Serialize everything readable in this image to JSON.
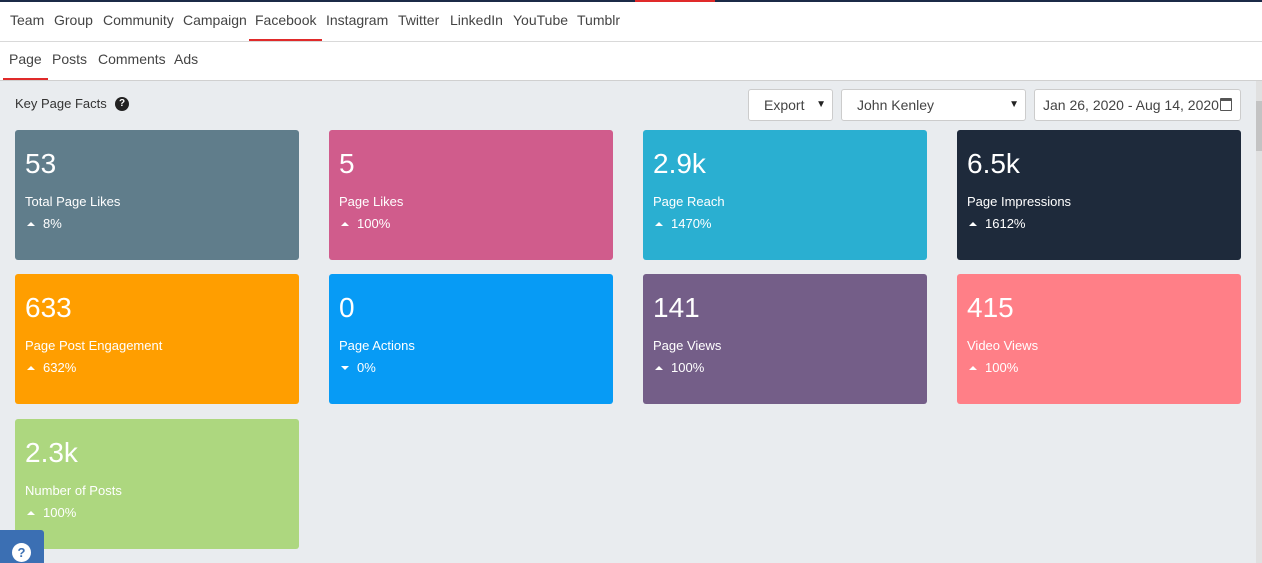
{
  "nav": {
    "primary_tabs": [
      "Team",
      "Group",
      "Community",
      "Campaign",
      "Facebook",
      "Instagram",
      "Twitter",
      "LinkedIn",
      "YouTube",
      "Tumblr"
    ],
    "active_primary": "Facebook",
    "secondary_tabs": [
      "Page",
      "Posts",
      "Comments",
      "Ads"
    ],
    "active_secondary": "Page"
  },
  "header": {
    "title": "Key Page Facts",
    "help_icon": "?"
  },
  "controls": {
    "export_label": "Export",
    "user_selected": "John Kenley",
    "date_range": "Jan 26, 2020 - Aug 14, 2020"
  },
  "cards": [
    {
      "value": "53",
      "label": "Total Page Likes",
      "change": "8%",
      "direction": "up",
      "color": "#607d8b"
    },
    {
      "value": "5",
      "label": "Page Likes",
      "change": "100%",
      "direction": "up",
      "color": "#d05c8c"
    },
    {
      "value": "2.9k",
      "label": "Page Reach",
      "change": "1470%",
      "direction": "up",
      "color": "#2aafd1"
    },
    {
      "value": "6.5k",
      "label": "Page Impressions",
      "change": "1612%",
      "direction": "up",
      "color": "#1e2a3b"
    },
    {
      "value": "633",
      "label": "Page Post Engagement",
      "change": "632%",
      "direction": "up",
      "color": "#ff9e00"
    },
    {
      "value": "0",
      "label": "Page Actions",
      "change": "0%",
      "direction": "down",
      "color": "#079bf5"
    },
    {
      "value": "141",
      "label": "Page Views",
      "change": "100%",
      "direction": "up",
      "color": "#745e88"
    },
    {
      "value": "415",
      "label": "Video Views",
      "change": "100%",
      "direction": "up",
      "color": "#ff7f87"
    },
    {
      "value": "2.3k",
      "label": "Number of Posts",
      "change": "100%",
      "direction": "up",
      "color": "#add77f"
    }
  ],
  "help_button": "?"
}
